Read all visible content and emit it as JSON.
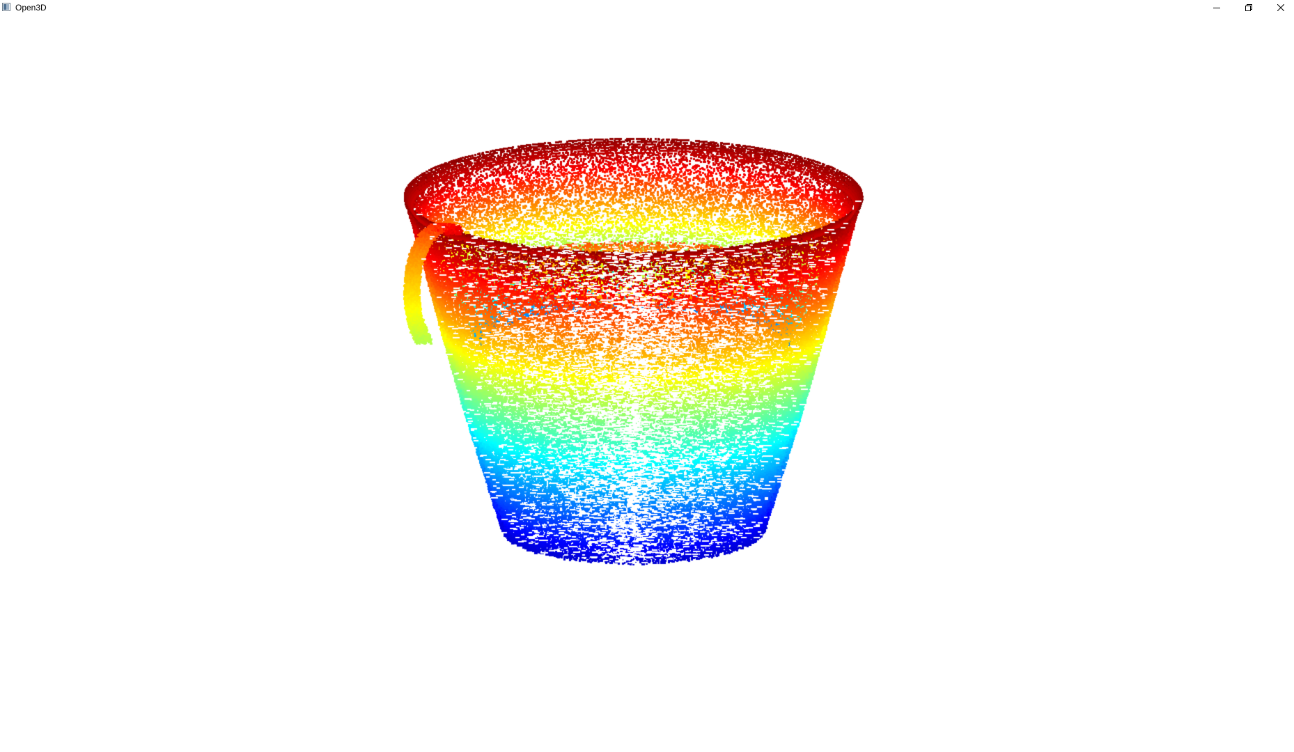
{
  "window": {
    "title": "Open3D",
    "background": "#ffffff"
  },
  "titlebar_icons": {
    "app": "open3d-window-icon",
    "minimize": "minimize-icon",
    "restore": "restore-icon",
    "close": "close-icon"
  },
  "viewport": {
    "content": "point-cloud",
    "colormap": "jet",
    "colormap_stops": [
      "#00008f",
      "#0000ff",
      "#00ffff",
      "#ffff00",
      "#ff0000",
      "#800000"
    ]
  }
}
